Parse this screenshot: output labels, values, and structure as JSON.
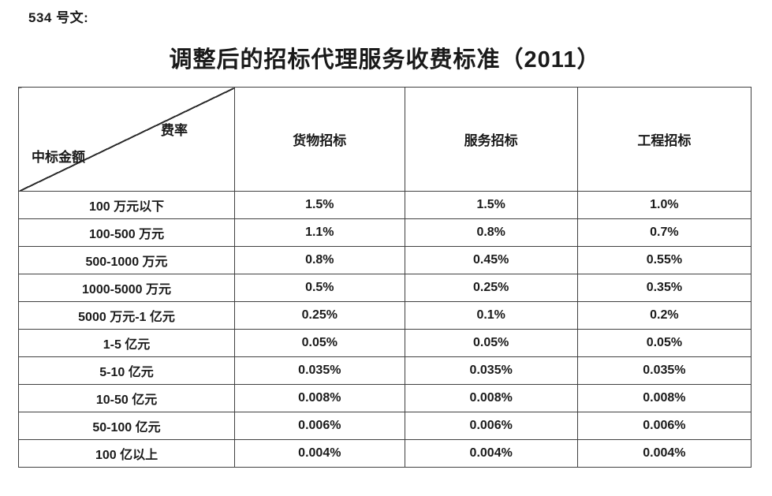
{
  "doc_label": "534 号文:",
  "title": "调整后的招标代理服务收费标准（2011）",
  "table": {
    "corner": {
      "top_right": "费率",
      "bottom_left": "中标金额"
    },
    "columns": [
      "货物招标",
      "服务招标",
      "工程招标"
    ],
    "rows": [
      {
        "label": "100 万元以下",
        "values": [
          "1.5%",
          "1.5%",
          "1.0%"
        ]
      },
      {
        "label": "100-500 万元",
        "values": [
          "1.1%",
          "0.8%",
          "0.7%"
        ]
      },
      {
        "label": "500-1000 万元",
        "values": [
          "0.8%",
          "0.45%",
          "0.55%"
        ]
      },
      {
        "label": "1000-5000 万元",
        "values": [
          "0.5%",
          "0.25%",
          "0.35%"
        ]
      },
      {
        "label": "5000 万元-1 亿元",
        "values": [
          "0.25%",
          "0.1%",
          "0.2%"
        ]
      },
      {
        "label": "1-5 亿元",
        "values": [
          "0.05%",
          "0.05%",
          "0.05%"
        ]
      },
      {
        "label": "5-10 亿元",
        "values": [
          "0.035%",
          "0.035%",
          "0.035%"
        ]
      },
      {
        "label": "10-50 亿元",
        "values": [
          "0.008%",
          "0.008%",
          "0.008%"
        ]
      },
      {
        "label": "50-100 亿元",
        "values": [
          "0.006%",
          "0.006%",
          "0.006%"
        ]
      },
      {
        "label": "100 亿以上",
        "values": [
          "0.004%",
          "0.004%",
          "0.004%"
        ]
      }
    ]
  },
  "colors": {
    "text": "#1a1a1a",
    "border": "#404040",
    "background": "#ffffff"
  }
}
